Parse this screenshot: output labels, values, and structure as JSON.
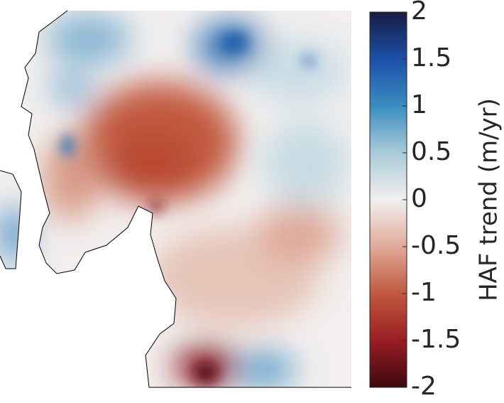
{
  "colorbar": {
    "label": "HAF trend (m/yr)",
    "lim": [
      -2,
      2
    ],
    "ticks": [
      2,
      1.5,
      1,
      0.5,
      0,
      -0.5,
      -1,
      -1.5,
      -2
    ],
    "colormap": [
      "#3c0911",
      "#9a1d24",
      "#c0593f",
      "#e0aa98",
      "#f2efee",
      "#a9cbd9",
      "#3a8cc0",
      "#1d4fa8",
      "#171d43"
    ]
  }
}
